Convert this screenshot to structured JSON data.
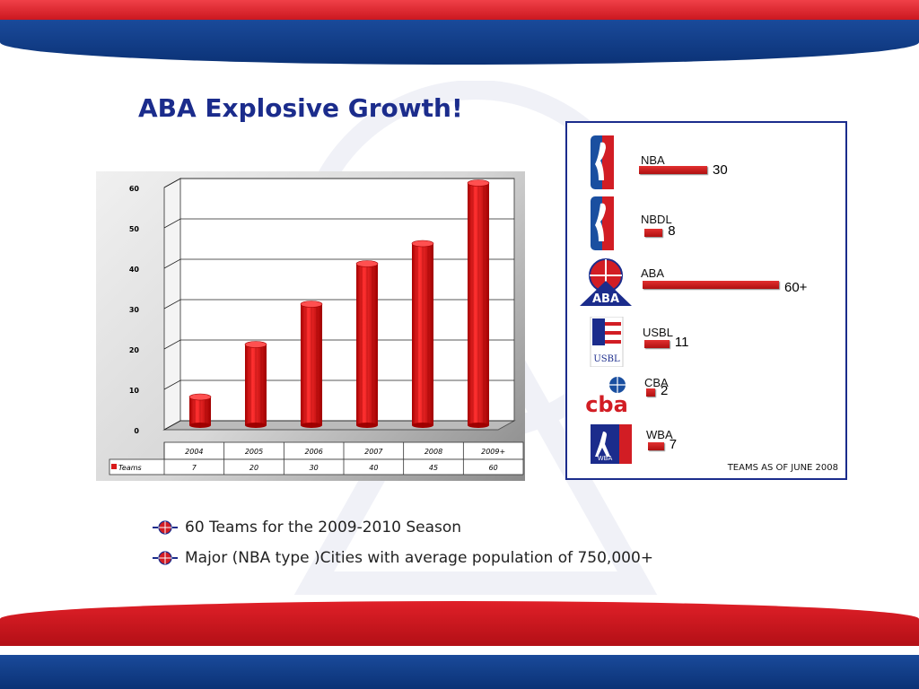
{
  "slide": {
    "title": "ABA Explosive Growth!",
    "bullets": [
      "60 Teams for the 2009-2010 Season",
      "Major (NBA type )Cities with average population of 750,000+"
    ]
  },
  "chart_data": [
    {
      "type": "bar",
      "categories": [
        "2004",
        "2005",
        "2006",
        "2007",
        "2008",
        "2009+"
      ],
      "series": [
        {
          "name": "Teams",
          "values": [
            7,
            20,
            30,
            40,
            45,
            60
          ]
        }
      ],
      "table_values": [
        "7",
        "20",
        "30",
        "40",
        "45",
        "60"
      ],
      "yticks": [
        "0",
        "10",
        "20",
        "30",
        "40",
        "50",
        "60"
      ],
      "ylim": [
        0,
        60
      ],
      "grid": true,
      "legend": "data-table"
    },
    {
      "type": "bar",
      "orientation": "horizontal",
      "categories": [
        "NBA",
        "NBDL",
        "ABA",
        "USBL",
        "CBA",
        "WBA"
      ],
      "values": [
        30,
        8,
        60,
        11,
        2,
        7
      ],
      "value_labels": [
        "30",
        "8",
        "60+",
        "11",
        "2",
        "7"
      ],
      "note": "TEAMS AS OF JUNE 2008"
    }
  ],
  "colors": {
    "bar_red": "#d81a1a",
    "title_blue": "#1b2c8c",
    "band_red": "#d0181f",
    "band_blue": "#103a82"
  },
  "icons": [
    "nba-logo",
    "nbdl-logo",
    "aba-logo",
    "usbl-logo",
    "cba-logo",
    "wba-logo",
    "basketball-bullet-icon"
  ]
}
